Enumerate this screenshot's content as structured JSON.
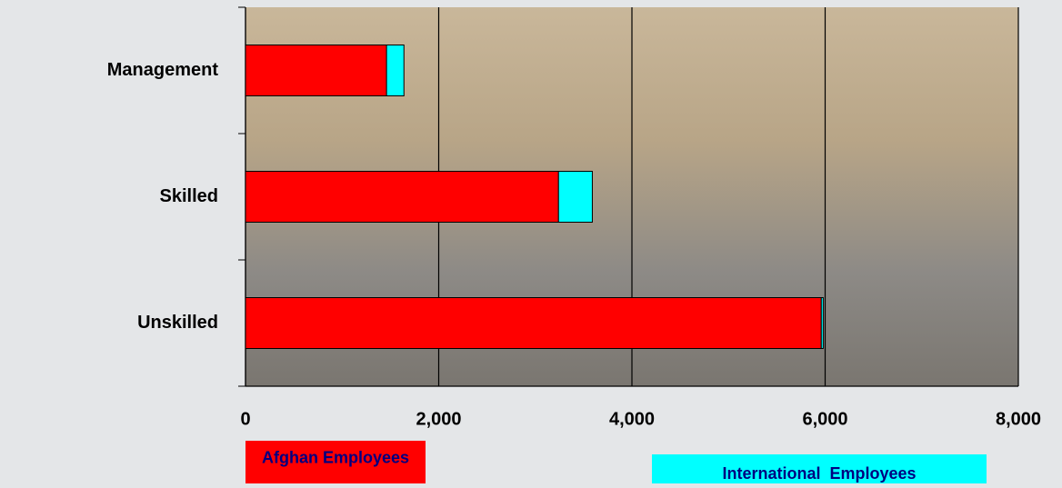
{
  "chart_data": {
    "type": "stacked-bar-horizontal",
    "categories": [
      "Management",
      "Skilled",
      "Unskilled"
    ],
    "series": [
      {
        "name": "Afghan Employees",
        "color": "#ff0000",
        "values": [
          1460,
          3240,
          5960
        ]
      },
      {
        "name": "International  Employees",
        "color": "#00ffff",
        "values": [
          180,
          350,
          20
        ]
      }
    ],
    "xlim": [
      0,
      8000
    ],
    "xticks": [
      0,
      {
        "value": 2000,
        "label": "2,000"
      },
      {
        "value": 4000,
        "label": "4,000"
      },
      {
        "value": 6000,
        "label": "6,000"
      },
      {
        "value": 8000,
        "label": "8,000"
      }
    ],
    "grid": true
  }
}
